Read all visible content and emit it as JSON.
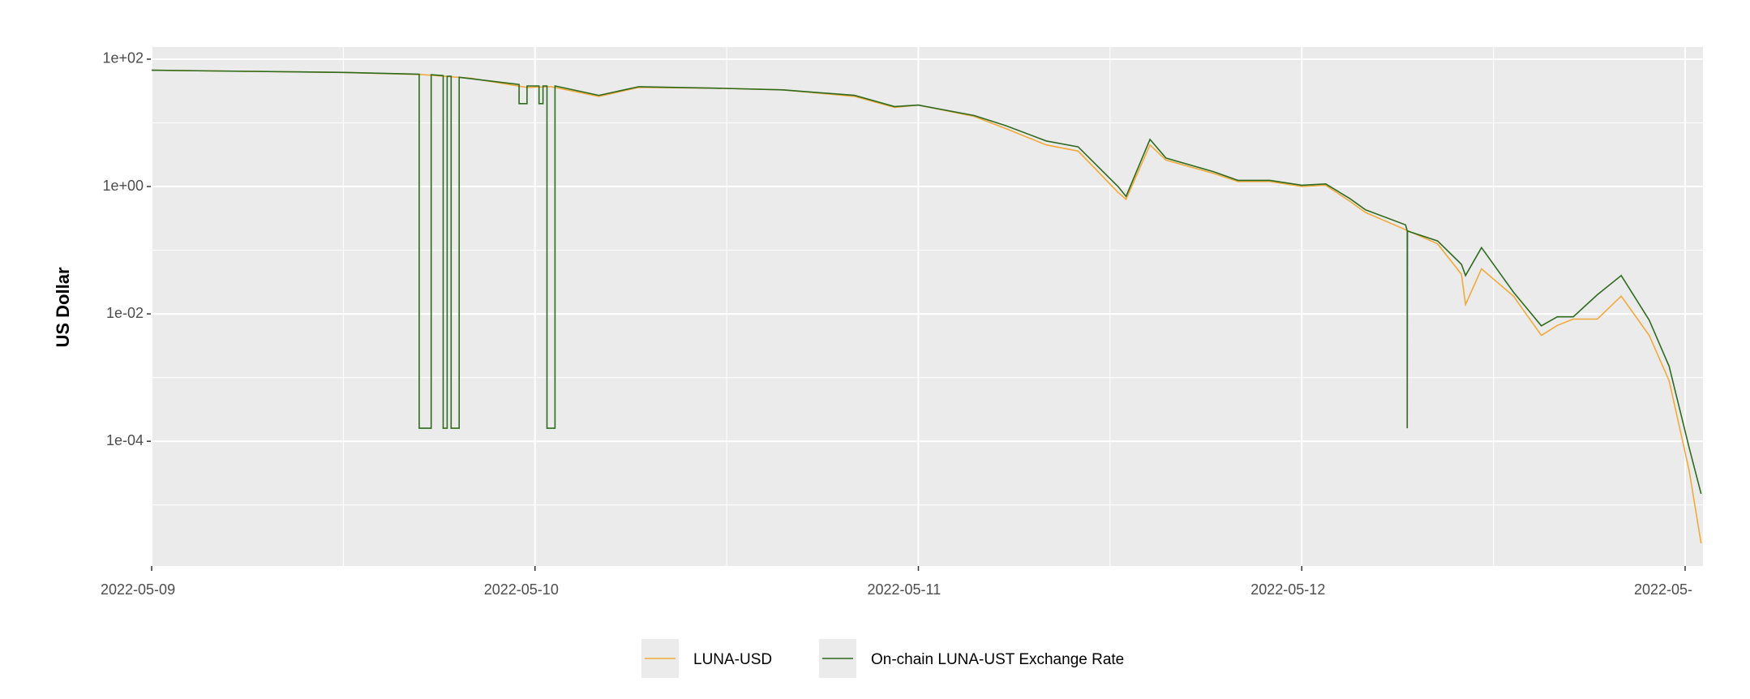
{
  "chart_data": {
    "type": "line",
    "ylabel": "US Dollar",
    "log_y": true,
    "grid": true,
    "legend": "bottom",
    "xlim": [
      "2022-05-09T00:00",
      "2022-05-13T01:07"
    ],
    "xticks": [
      "2022-05-09",
      "2022-05-10",
      "2022-05-11",
      "2022-05-12",
      {
        "value": "2022-05-13",
        "label": "2022-05-"
      }
    ],
    "ylim": [
      1.1e-06,
      155
    ],
    "yticks": [
      {
        "value": 0.0001,
        "label": "1e-04"
      },
      {
        "value": 0.01,
        "label": "1e-02"
      },
      {
        "value": 1,
        "label": "1e+00"
      },
      {
        "value": 100,
        "label": "1e+02"
      }
    ],
    "series": [
      {
        "name": "LUNA-USD",
        "color": "#f2a93b",
        "x": [
          "2022-05-09T00:00",
          "2022-05-09T12:00",
          "2022-05-09T17:00",
          "2022-05-09T20:00",
          "2022-05-09T23:30",
          "2022-05-10T01:00",
          "2022-05-10T04:00",
          "2022-05-10T06:30",
          "2022-05-10T11:30",
          "2022-05-10T15:30",
          "2022-05-10T20:00",
          "2022-05-10T22:30",
          "2022-05-11T00:00",
          "2022-05-11T03:30",
          "2022-05-11T05:30",
          "2022-05-11T08:00",
          "2022-05-11T10:00",
          "2022-05-11T12:30",
          "2022-05-11T13:00",
          "2022-05-11T14:30",
          "2022-05-11T15:30",
          "2022-05-11T18:30",
          "2022-05-11T20:00",
          "2022-05-11T22:00",
          "2022-05-12T00:00",
          "2022-05-12T01:30",
          "2022-05-12T03:00",
          "2022-05-12T04:00",
          "2022-05-12T06:30",
          "2022-05-12T08:30",
          "2022-05-12T10:00",
          "2022-05-12T10:15",
          "2022-05-12T11:15",
          "2022-05-12T13:15",
          "2022-05-12T15:00",
          "2022-05-12T16:00",
          "2022-05-12T17:00",
          "2022-05-12T18:30",
          "2022-05-12T20:00",
          "2022-05-12T21:45",
          "2022-05-12T23:00",
          "2022-05-13T00:15",
          "2022-05-13T01:00"
        ],
        "values": [
          67,
          62,
          57,
          50,
          36,
          37,
          26,
          36,
          35,
          33,
          26,
          17.5,
          19,
          12.6,
          8.1,
          4.5,
          3.6,
          0.81,
          0.63,
          4.5,
          2.6,
          1.6,
          1.2,
          1.2,
          1.0,
          1.05,
          0.59,
          0.39,
          0.21,
          0.126,
          0.042,
          0.014,
          0.051,
          0.019,
          0.0046,
          0.0066,
          0.0083,
          0.0083,
          0.019,
          0.0046,
          0.00089,
          3.5e-05,
          2.5e-06
        ]
      },
      {
        "name": "On-chain LUNA-UST Exchange Rate",
        "color": "#2e6b1e",
        "x": [
          "2022-05-09T00:00",
          "2022-05-09T12:00",
          "2022-05-09T16:45",
          "2022-05-09T16:45",
          "2022-05-09T17:30",
          "2022-05-09T17:30",
          "2022-05-09T18:15",
          "2022-05-09T18:15",
          "2022-05-09T18:30",
          "2022-05-09T18:30",
          "2022-05-09T18:45",
          "2022-05-09T18:45",
          "2022-05-09T19:15",
          "2022-05-09T19:15",
          "2022-05-09T23:00",
          "2022-05-09T23:00",
          "2022-05-09T23:30",
          "2022-05-09T23:30",
          "2022-05-10T00:15",
          "2022-05-10T00:15",
          "2022-05-10T00:30",
          "2022-05-10T00:30",
          "2022-05-10T00:45",
          "2022-05-10T00:45",
          "2022-05-10T01:15",
          "2022-05-10T01:15",
          "2022-05-10T04:00",
          "2022-05-10T06:30",
          "2022-05-10T11:30",
          "2022-05-10T15:30",
          "2022-05-10T20:00",
          "2022-05-10T22:30",
          "2022-05-11T00:00",
          "2022-05-11T03:30",
          "2022-05-11T05:30",
          "2022-05-11T08:00",
          "2022-05-11T10:00",
          "2022-05-11T12:30",
          "2022-05-11T13:00",
          "2022-05-11T14:30",
          "2022-05-11T15:30",
          "2022-05-11T18:30",
          "2022-05-11T20:00",
          "2022-05-11T22:00",
          "2022-05-12T00:00",
          "2022-05-12T01:30",
          "2022-05-12T03:00",
          "2022-05-12T04:00",
          "2022-05-12T06:30",
          "2022-05-12T06:36",
          "2022-05-12T06:36",
          "2022-05-12T06:37",
          "2022-05-12T08:30",
          "2022-05-12T10:00",
          "2022-05-12T10:15",
          "2022-05-12T11:15",
          "2022-05-12T13:15",
          "2022-05-12T15:00",
          "2022-05-12T16:00",
          "2022-05-12T17:00",
          "2022-05-12T18:30",
          "2022-05-12T20:00",
          "2022-05-12T21:45",
          "2022-05-12T23:00",
          "2022-05-13T00:15",
          "2022-05-13T01:00"
        ],
        "values": [
          67,
          62,
          58,
          0.00016,
          0.00016,
          57,
          55,
          0.00016,
          0.00016,
          54,
          54,
          0.00016,
          0.00016,
          52,
          40,
          20,
          20,
          38,
          38,
          20,
          20,
          38,
          38,
          0.00016,
          0.00016,
          38,
          27,
          37,
          35,
          33,
          27,
          18,
          19,
          13,
          9,
          5.2,
          4.2,
          1.0,
          0.7,
          5.5,
          2.8,
          1.7,
          1.25,
          1.25,
          1.05,
          1.1,
          0.65,
          0.43,
          0.25,
          0.2,
          0.00016,
          0.2,
          0.14,
          0.06,
          0.04,
          0.11,
          0.022,
          0.0065,
          0.009,
          0.009,
          0.02,
          0.04,
          0.008,
          0.0015,
          8e-05,
          1.5e-05
        ]
      }
    ]
  }
}
